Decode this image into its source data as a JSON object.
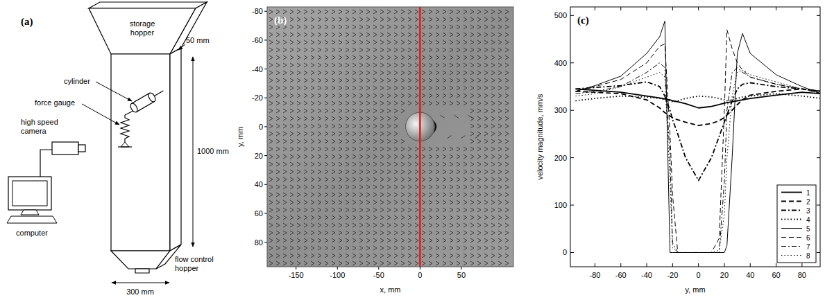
{
  "diagram": {
    "label": "(a)",
    "storage_hopper": "storage hopper",
    "depth": "50 mm",
    "height": "1000 mm",
    "cylinder": "cylinder",
    "force_gauge": "force gauge",
    "camera": "high speed camera",
    "computer": "computer",
    "flow_control_hopper": "flow control hopper",
    "width": "300 mm"
  },
  "chart_data": [
    {
      "type": "vector_field",
      "label": "(b)",
      "xlabel": "x, mm",
      "ylabel": "y, mm",
      "xlim": [
        -185,
        113
      ],
      "ylim": [
        -83,
        97
      ],
      "xticks": [
        -150,
        -100,
        -50,
        0,
        50
      ],
      "yticks": [
        -80,
        -60,
        -40,
        -20,
        0,
        20,
        40,
        60,
        80
      ],
      "section": {
        "x": 0,
        "color": "#e8141c"
      },
      "cylinder": {
        "x": 0,
        "y": 0,
        "diameter": 35
      }
    },
    {
      "type": "line",
      "label": "(c)",
      "xlabel": "y, mm",
      "ylabel": "velocity magnitude, mm/s",
      "xlim": [
        -99,
        94
      ],
      "ylim": [
        -30,
        518
      ],
      "xticks": [
        -80,
        -60,
        -40,
        -20,
        0,
        20,
        40,
        60,
        80
      ],
      "yticks": [
        0,
        100,
        200,
        300,
        400,
        500
      ],
      "grid": false,
      "legend": "lower right",
      "x": [
        -95,
        -80,
        -60,
        -40,
        -30,
        -26,
        -22,
        -20,
        -16,
        -10,
        0,
        10,
        16,
        20,
        22,
        26,
        30,
        34,
        40,
        60,
        80,
        95
      ],
      "series": [
        {
          "name": "1",
          "color": "#000000",
          "line_style": "solid",
          "values": [
            345,
            342,
            338,
            330,
            326,
            324,
            322,
            320,
            318,
            314,
            305,
            308,
            312,
            315,
            316,
            318,
            320,
            322,
            325,
            332,
            338,
            335
          ]
        },
        {
          "name": "2",
          "color": "#000000",
          "line_style": "dashed",
          "values": [
            340,
            338,
            335,
            322,
            305,
            295,
            288,
            284,
            280,
            275,
            268,
            272,
            278,
            285,
            290,
            300,
            312,
            322,
            332,
            340,
            345,
            340
          ]
        },
        {
          "name": "3",
          "color": "#000000",
          "line_style": "dashdot",
          "values": [
            345,
            348,
            352,
            360,
            350,
            330,
            300,
            280,
            250,
            200,
            152,
            200,
            245,
            275,
            290,
            320,
            345,
            355,
            358,
            350,
            345,
            340
          ]
        },
        {
          "name": "4",
          "color": "#000000",
          "line_style": "dotted",
          "values": [
            320,
            325,
            330,
            328,
            325,
            322,
            320,
            318,
            320,
            325,
            330,
            328,
            325,
            322,
            320,
            322,
            325,
            328,
            330,
            335,
            330,
            325
          ]
        },
        {
          "name": "5",
          "color": "#000000",
          "line_style": "solid",
          "values": [
            340,
            352,
            372,
            420,
            455,
            488,
            0,
            0,
            0,
            0,
            0,
            0,
            0,
            0,
            15,
            200,
            420,
            462,
            420,
            375,
            350,
            335
          ]
        },
        {
          "name": "6",
          "color": "#000000",
          "line_style": "dashed",
          "values": [
            340,
            350,
            365,
            400,
            435,
            440,
            250,
            120,
            0,
            0,
            0,
            0,
            30,
            300,
            470,
            430,
            400,
            385,
            370,
            355,
            345,
            335
          ]
        },
        {
          "name": "7",
          "color": "#000000",
          "line_style": "dashdot",
          "values": [
            335,
            340,
            350,
            380,
            400,
            390,
            200,
            20,
            0,
            0,
            0,
            0,
            0,
            150,
            300,
            380,
            390,
            380,
            370,
            355,
            345,
            340
          ]
        },
        {
          "name": "8",
          "color": "#000000",
          "line_style": "dotted",
          "values": [
            330,
            335,
            350,
            370,
            380,
            370,
            150,
            10,
            0,
            0,
            0,
            0,
            5,
            80,
            200,
            330,
            380,
            385,
            375,
            360,
            345,
            335
          ]
        }
      ]
    }
  ]
}
